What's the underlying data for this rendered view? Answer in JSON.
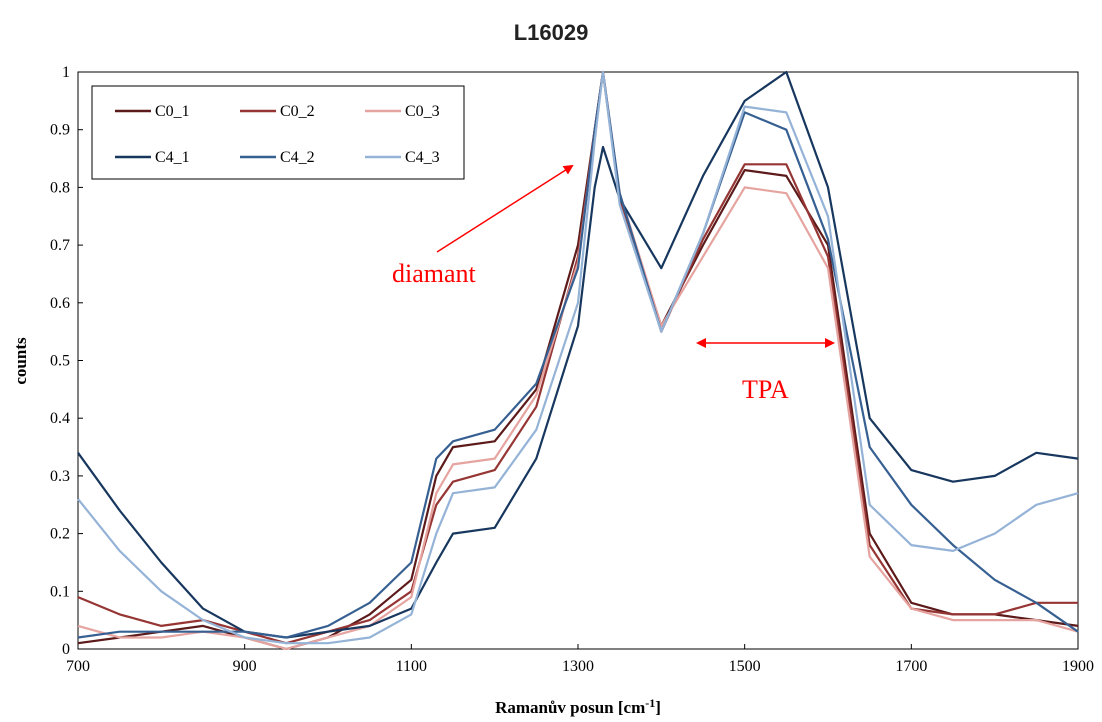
{
  "chart_data": {
    "type": "line",
    "title": "L16029",
    "xlabel": "Ramanův posun [cm",
    "xlabel_sup": "-1",
    "xlabel_end": "]",
    "ylabel": "counts",
    "xlim": [
      700,
      1900
    ],
    "ylim": [
      0,
      1
    ],
    "x_ticks": [
      700,
      900,
      1100,
      1300,
      1500,
      1700,
      1900
    ],
    "y_ticks": [
      0,
      0.1,
      0.2,
      0.3,
      0.4,
      0.5,
      0.6,
      0.7,
      0.8,
      0.9,
      1
    ],
    "y_tick_labels": [
      "0",
      "0.1",
      "0.2",
      "0.3",
      "0.4",
      "0.5",
      "0.6",
      "0.7",
      "0.8",
      "0.9",
      "1"
    ],
    "grid": false,
    "legend_position": "top-left",
    "x": [
      700,
      750,
      800,
      850,
      900,
      950,
      1000,
      1050,
      1100,
      1130,
      1150,
      1200,
      1250,
      1300,
      1320,
      1330,
      1350,
      1400,
      1450,
      1500,
      1550,
      1600,
      1650,
      1700,
      1750,
      1800,
      1850,
      1900
    ],
    "series": [
      {
        "name": "C0_1",
        "color": "#5c1a1a",
        "values": [
          0.01,
          0.02,
          0.03,
          0.04,
          0.02,
          0.0,
          0.02,
          0.06,
          0.12,
          0.3,
          0.35,
          0.36,
          0.45,
          0.7,
          0.9,
          1.0,
          0.78,
          0.56,
          0.7,
          0.83,
          0.82,
          0.7,
          0.2,
          0.08,
          0.06,
          0.06,
          0.05,
          0.04
        ]
      },
      {
        "name": "C0_2",
        "color": "#963634",
        "values": [
          0.09,
          0.06,
          0.04,
          0.05,
          0.03,
          0.01,
          0.03,
          0.05,
          0.1,
          0.25,
          0.29,
          0.31,
          0.42,
          0.68,
          0.9,
          1.0,
          0.78,
          0.55,
          0.71,
          0.84,
          0.84,
          0.68,
          0.18,
          0.07,
          0.06,
          0.06,
          0.08,
          0.08
        ]
      },
      {
        "name": "C0_3",
        "color": "#e6a4a0",
        "values": [
          0.04,
          0.02,
          0.02,
          0.03,
          0.02,
          0.0,
          0.02,
          0.04,
          0.09,
          0.27,
          0.32,
          0.33,
          0.44,
          0.67,
          0.89,
          1.0,
          0.79,
          0.56,
          0.68,
          0.8,
          0.79,
          0.66,
          0.16,
          0.07,
          0.05,
          0.05,
          0.05,
          0.03
        ]
      },
      {
        "name": "C4_1",
        "color": "#17375e",
        "values": [
          0.34,
          0.24,
          0.15,
          0.07,
          0.03,
          0.02,
          0.03,
          0.04,
          0.07,
          0.15,
          0.2,
          0.21,
          0.33,
          0.56,
          0.8,
          0.87,
          0.78,
          0.66,
          0.82,
          0.95,
          1.0,
          0.8,
          0.4,
          0.31,
          0.29,
          0.3,
          0.34,
          0.33
        ]
      },
      {
        "name": "C4_2",
        "color": "#376092",
        "values": [
          0.02,
          0.03,
          0.03,
          0.03,
          0.03,
          0.02,
          0.04,
          0.08,
          0.15,
          0.33,
          0.36,
          0.38,
          0.46,
          0.66,
          0.9,
          1.0,
          0.79,
          0.55,
          0.72,
          0.93,
          0.9,
          0.71,
          0.35,
          0.25,
          0.18,
          0.12,
          0.08,
          0.03
        ]
      },
      {
        "name": "C4_3",
        "color": "#95b3d7",
        "values": [
          0.26,
          0.17,
          0.1,
          0.05,
          0.02,
          0.01,
          0.01,
          0.02,
          0.06,
          0.2,
          0.27,
          0.28,
          0.38,
          0.6,
          0.88,
          1.0,
          0.77,
          0.55,
          0.72,
          0.94,
          0.93,
          0.75,
          0.25,
          0.18,
          0.17,
          0.2,
          0.25,
          0.27
        ]
      }
    ],
    "annotations": [
      {
        "text": "diamant",
        "color": "#ff0000"
      },
      {
        "text": "TPA",
        "color": "#ff0000"
      }
    ]
  }
}
